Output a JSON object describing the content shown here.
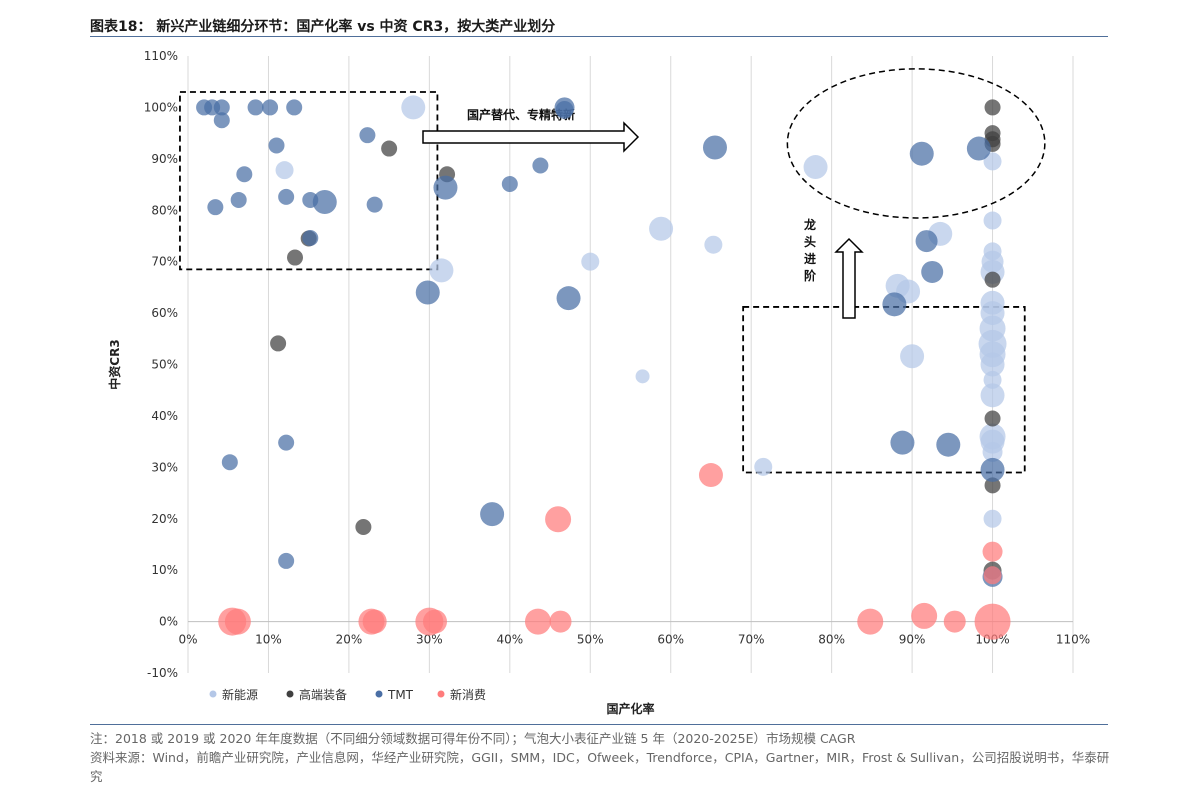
{
  "figure": {
    "title": "图表18：  新兴产业链细分环节：国产化率 vs 中资 CR3，按大类产业划分",
    "note": "注：2018 或 2019 或 2020 年年度数据（不同细分领域数据可得年份不同）；气泡大小表征产业链 5 年（2020-2025E）市场规模 CAGR",
    "source": "资料来源：Wind，前瞻产业研究院，产业信息网，华经产业研究院，GGII，SMM，IDC，Ofweek，Trendforce，CPIA，Gartner，MIR，Frost & Sullivan，公司招股说明书，华泰研究"
  },
  "chart_data": {
    "type": "scatter",
    "subtype": "bubble",
    "xlabel": "国产化率",
    "ylabel": "中资CR3",
    "xlim": [
      0,
      110
    ],
    "ylim": [
      -10,
      110
    ],
    "xticks": [
      0,
      10,
      20,
      30,
      40,
      50,
      60,
      70,
      80,
      90,
      100,
      110
    ],
    "yticks": [
      -10,
      0,
      10,
      20,
      30,
      40,
      50,
      60,
      70,
      80,
      90,
      100,
      110
    ],
    "tick_format": "{v}%",
    "grid": "vertical",
    "legend_position": "bottom",
    "annotations": {
      "arrow_right_label": "国产替代、专精特新",
      "arrow_up_label": [
        "龙",
        "头",
        "进",
        "阶"
      ],
      "boxes": [
        {
          "x": [
            -1,
            31
          ],
          "y": [
            68.5,
            103
          ]
        },
        {
          "x": [
            69,
            104
          ],
          "y": [
            29,
            61.2
          ]
        }
      ],
      "ellipse": {
        "cx": 90.5,
        "cy": 93,
        "rx": 16,
        "ry": 14.5
      }
    },
    "series": [
      {
        "name": "新能源",
        "color": "#b4c7e7",
        "points": [
          [
            28,
            100,
            12
          ],
          [
            12,
            87.8,
            9
          ],
          [
            31.5,
            68.3,
            12
          ],
          [
            58.8,
            76.4,
            12
          ],
          [
            65.3,
            73.3,
            9
          ],
          [
            50,
            70,
            9
          ],
          [
            56.5,
            47.7,
            7
          ],
          [
            71.5,
            30.1,
            9
          ],
          [
            78,
            88.4,
            12
          ],
          [
            88.2,
            65.3,
            12
          ],
          [
            89.5,
            64.2,
            12
          ],
          [
            90,
            51.6,
            12
          ],
          [
            93.5,
            75.4,
            12
          ],
          [
            100,
            89.5,
            9
          ],
          [
            100,
            78,
            9
          ],
          [
            100,
            72,
            9
          ],
          [
            100,
            70,
            11
          ],
          [
            100,
            68,
            12
          ],
          [
            100,
            62,
            12
          ],
          [
            100,
            60,
            12
          ],
          [
            100,
            57,
            13
          ],
          [
            100,
            54,
            14
          ],
          [
            100,
            52,
            13
          ],
          [
            100,
            50,
            12
          ],
          [
            100,
            47,
            9
          ],
          [
            100,
            44,
            12
          ],
          [
            100,
            36,
            13
          ],
          [
            100,
            35,
            12
          ],
          [
            100,
            33,
            10
          ],
          [
            100,
            20,
            9
          ]
        ]
      },
      {
        "name": "高端装备",
        "color": "#404040",
        "points": [
          [
            25,
            92,
            8
          ],
          [
            32.2,
            87,
            8
          ],
          [
            15,
            74.5,
            8
          ],
          [
            13.3,
            70.8,
            8
          ],
          [
            11.2,
            54.1,
            8
          ],
          [
            21.8,
            18.4,
            8
          ],
          [
            100,
            100,
            8
          ],
          [
            100,
            95,
            8
          ],
          [
            100,
            93.8,
            8
          ],
          [
            100,
            92.9,
            8
          ],
          [
            100,
            66.5,
            8
          ],
          [
            100,
            39.5,
            8
          ],
          [
            100,
            26.5,
            8
          ],
          [
            100,
            9.9,
            9
          ]
        ]
      },
      {
        "name": "TMT",
        "color": "#4a6fa5",
        "points": [
          [
            2,
            100,
            8
          ],
          [
            3,
            100,
            8
          ],
          [
            4.2,
            100,
            8
          ],
          [
            8.4,
            100,
            8
          ],
          [
            10.2,
            100,
            8
          ],
          [
            13.2,
            100,
            8
          ],
          [
            46.8,
            100,
            10
          ],
          [
            46.8,
            99.5,
            9
          ],
          [
            4.2,
            97.5,
            8
          ],
          [
            22.3,
            94.6,
            8
          ],
          [
            11,
            92.6,
            8
          ],
          [
            7,
            87,
            8
          ],
          [
            43.8,
            88.7,
            8
          ],
          [
            40,
            85.1,
            8
          ],
          [
            32,
            84.4,
            12
          ],
          [
            12.2,
            82.6,
            8
          ],
          [
            15.2,
            82,
            8
          ],
          [
            17,
            81.6,
            12
          ],
          [
            6.3,
            82,
            8
          ],
          [
            23.2,
            81.1,
            8
          ],
          [
            3.4,
            80.6,
            8
          ],
          [
            15.2,
            74.6,
            8
          ],
          [
            65.5,
            92.2,
            12
          ],
          [
            91.2,
            91,
            12
          ],
          [
            98.3,
            92,
            12
          ],
          [
            91.8,
            74,
            11
          ],
          [
            92.5,
            68,
            11
          ],
          [
            87.8,
            61.7,
            12
          ],
          [
            29.8,
            64,
            12
          ],
          [
            47.3,
            62.9,
            12
          ],
          [
            12.2,
            34.8,
            8
          ],
          [
            5.2,
            31,
            8
          ],
          [
            12.2,
            11.8,
            8
          ],
          [
            37.8,
            20.9,
            12
          ],
          [
            88.8,
            34.8,
            12
          ],
          [
            94.5,
            34.4,
            12
          ],
          [
            100,
            29.5,
            12
          ],
          [
            100,
            8.7,
            10
          ]
        ]
      },
      {
        "name": "新消费",
        "color": "#ff7c7c",
        "points": [
          [
            5.5,
            0,
            14
          ],
          [
            6.2,
            0,
            13
          ],
          [
            22.8,
            0,
            13
          ],
          [
            23.2,
            0,
            12
          ],
          [
            30,
            0,
            14
          ],
          [
            30.7,
            0,
            12
          ],
          [
            43.5,
            0,
            13
          ],
          [
            46.3,
            0,
            11
          ],
          [
            84.8,
            0,
            13
          ],
          [
            91.5,
            1.1,
            13
          ],
          [
            95.3,
            0,
            11
          ],
          [
            100,
            0,
            18
          ],
          [
            100,
            13.6,
            10
          ],
          [
            100,
            9,
            9
          ],
          [
            46,
            19.9,
            13
          ],
          [
            65,
            28.5,
            12
          ]
        ]
      }
    ]
  }
}
